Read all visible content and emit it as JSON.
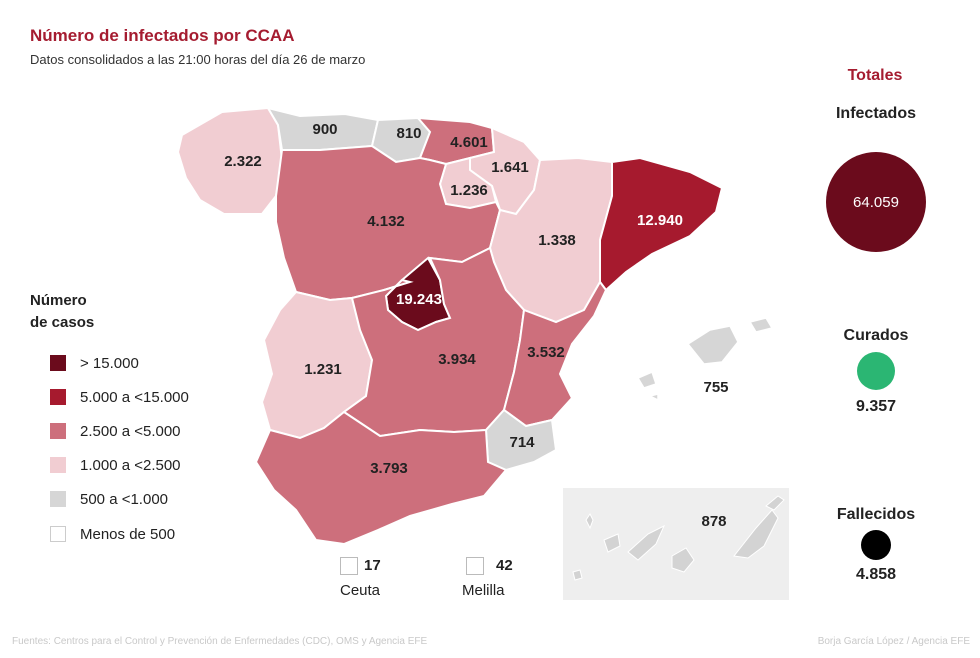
{
  "header": {
    "title": "Número de infectados por CCAA",
    "subtitle": "Datos consolidados a las 21:00 horas del día 26 de marzo"
  },
  "regions": {
    "galicia": "2.322",
    "asturias": "900",
    "cantabria": "810",
    "pais_vasco": "4.601",
    "navarra": "1.641",
    "la_rioja": "1.236",
    "castilla_leon": "4.132",
    "aragon": "1.338",
    "cataluna": "12.940",
    "madrid": "19.243",
    "extremadura": "1.231",
    "castilla_la_mancha": "3.934",
    "valencia": "3.532",
    "murcia": "714",
    "andalucia": "3.793",
    "baleares": "755",
    "canarias": "878"
  },
  "cities": {
    "ceuta": {
      "name": "Ceuta",
      "value": "17"
    },
    "melilla": {
      "name": "Melilla",
      "value": "42"
    }
  },
  "legend": {
    "title_line1": "Número",
    "title_line2": "de casos",
    "items": [
      {
        "label": "> 15.000",
        "color": "#6b0b1c"
      },
      {
        "label": "5.000 a <15.000",
        "color": "#a61a2e"
      },
      {
        "label": "2.500 a <5.000",
        "color": "#cd6f7c"
      },
      {
        "label": "1.000 a <2.500",
        "color": "#f1cdd2"
      },
      {
        "label": "500 a <1.000",
        "color": "#d6d6d6"
      },
      {
        "label": "Menos de 500",
        "color": "#ffffff"
      }
    ]
  },
  "totals": {
    "title": "Totales",
    "infectados_label": "Infectados",
    "infectados_value": "64.059",
    "curados_label": "Curados",
    "curados_value": "9.357",
    "fallecidos_label": "Fallecidos",
    "fallecidos_value": "4.858",
    "colors": {
      "infectados": "#6b0b1c",
      "curados": "#2bb673",
      "fallecidos": "#000000"
    }
  },
  "footer": {
    "source": "Fuentes: Centros para el Control y Prevención de Enfermedades (CDC), OMS y Agencia EFE",
    "credit": "Borja García López / Agencia EFE"
  }
}
